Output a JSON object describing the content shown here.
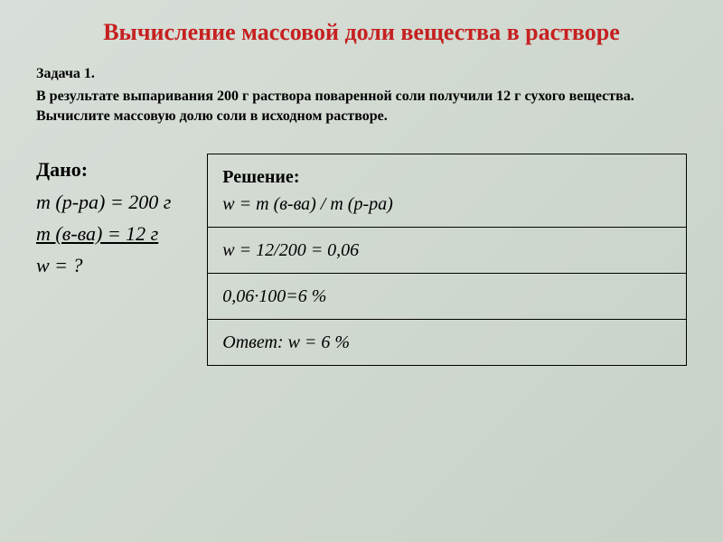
{
  "title": "Вычисление массовой доли вещества в растворе",
  "problem": {
    "label": "Задача 1.",
    "text": "В результате выпаривания 200 г раствора поваренной соли получили 12 г сухого вещества. Вычислите массовую долю соли в исходном растворе."
  },
  "given": {
    "header": "Дано:",
    "line1": "m (р-ра) = 200 г",
    "line2": "m (в-ва) = 12 г",
    "line3": "w  = ?"
  },
  "solution": {
    "header": "Решение:",
    "formula": "w = m (в-ва) / m (р-ра)",
    "calc1": "w = 12/200 = 0,06",
    "calc2": "0,06·100=6 %",
    "answer": "Ответ: w = 6 %"
  },
  "colors": {
    "title": "#c62020",
    "text": "#000000",
    "background_start": "#d8dfd8",
    "background_end": "#c8d2c8",
    "border": "#000000"
  },
  "typography": {
    "title_fontsize": 26,
    "problem_fontsize": 16,
    "given_fontsize": 22,
    "solution_fontsize": 20,
    "font_family": "Times New Roman"
  }
}
